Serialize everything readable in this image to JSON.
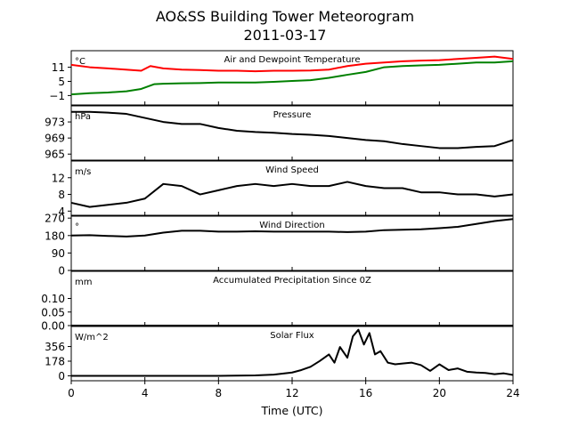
{
  "title_line1": "AO&SS Building Tower Meteorogram",
  "title_line2": "2011-03-17",
  "xlabel": "Time (UTC)",
  "x_ticks": [
    "0",
    "4",
    "8",
    "12",
    "16",
    "20",
    "24"
  ],
  "chart_data": [
    {
      "type": "line",
      "panel_title": "Air and Dewpoint Temperature",
      "unit": "°C",
      "ylim": [
        -5,
        18
      ],
      "yticks": [
        {
          "v": 11,
          "label": "11"
        },
        {
          "v": 5,
          "label": "5"
        },
        {
          "v": -1,
          "label": "−1"
        }
      ],
      "series": [
        {
          "color": "#ff0000",
          "x": [
            0,
            1,
            2,
            3.8,
            4.3,
            5,
            6,
            7,
            8,
            9,
            10,
            11,
            12,
            13,
            14,
            15,
            16,
            17,
            18,
            19,
            20,
            21,
            22,
            23,
            24
          ],
          "y": [
            12,
            11,
            10.5,
            9.5,
            11.5,
            10.5,
            10,
            9.8,
            9.5,
            9.5,
            9.3,
            9.5,
            9.5,
            9.6,
            10,
            11.5,
            12.5,
            13,
            13.5,
            13.8,
            14,
            14.5,
            15,
            15.5,
            14.5
          ]
        },
        {
          "color": "#008000",
          "x": [
            0,
            1,
            2,
            3,
            3.8,
            4.5,
            5,
            6,
            7,
            8,
            9,
            10,
            11,
            12,
            13,
            14,
            15,
            16,
            17,
            18,
            19,
            20,
            21,
            22,
            23,
            24
          ],
          "y": [
            -0.5,
            0,
            0.3,
            0.8,
            1.8,
            3.8,
            4,
            4.2,
            4.3,
            4.5,
            4.5,
            4.5,
            4.8,
            5.2,
            5.5,
            6.5,
            7.8,
            9,
            11,
            11.5,
            11.8,
            12,
            12.5,
            13,
            13,
            13.5
          ]
        }
      ]
    },
    {
      "type": "line",
      "panel_title": "Pressure",
      "unit": "hPa",
      "ylim": [
        963.5,
        977
      ],
      "yticks": [
        {
          "v": 973,
          "label": "973"
        },
        {
          "v": 969,
          "label": "969"
        },
        {
          "v": 965,
          "label": "965"
        }
      ],
      "series": [
        {
          "color": "#000000",
          "x": [
            0,
            1,
            2,
            3,
            4,
            5,
            6,
            7,
            8,
            9,
            10,
            11,
            12,
            13,
            14,
            15,
            16,
            17,
            18,
            19,
            20,
            21,
            22,
            23,
            24
          ],
          "y": [
            975.5,
            975.5,
            975.3,
            975,
            974,
            973,
            972.5,
            972.5,
            971.5,
            970.8,
            970.5,
            970.3,
            970,
            969.8,
            969.5,
            969,
            968.5,
            968.2,
            967.5,
            967,
            966.5,
            966.5,
            966.8,
            967,
            968.5
          ]
        }
      ]
    },
    {
      "type": "line",
      "panel_title": "Wind Speed",
      "unit": "m/s",
      "ylim": [
        3,
        16
      ],
      "yticks": [
        {
          "v": 12,
          "label": "12"
        },
        {
          "v": 8,
          "label": "8"
        },
        {
          "v": 4,
          "label": "4"
        }
      ],
      "series": [
        {
          "color": "#000000",
          "x": [
            0,
            1,
            2,
            3,
            4,
            5,
            6,
            7,
            8,
            9,
            10,
            11,
            12,
            13,
            14,
            15,
            16,
            17,
            18,
            19,
            20,
            21,
            22,
            23,
            24
          ],
          "y": [
            6,
            5,
            5.5,
            6,
            7,
            10.5,
            10,
            8,
            9,
            10,
            10.5,
            10,
            10.5,
            10,
            10,
            11,
            10,
            9.5,
            9.5,
            8.5,
            8.5,
            8,
            8,
            7.5,
            8
          ]
        }
      ]
    },
    {
      "type": "line",
      "panel_title": "Wind Direction",
      "unit": "°",
      "ylim": [
        0,
        280
      ],
      "yticks": [
        {
          "v": 270,
          "label": "270"
        },
        {
          "v": 180,
          "label": "180"
        },
        {
          "v": 90,
          "label": "90"
        },
        {
          "v": 0,
          "label": "0"
        }
      ],
      "series": [
        {
          "color": "#000000",
          "x": [
            0,
            1,
            2,
            3,
            4,
            5,
            6,
            7,
            8,
            9,
            10,
            11,
            12,
            13,
            14,
            15,
            16,
            17,
            18,
            19,
            20,
            21,
            22,
            23,
            24
          ],
          "y": [
            180,
            182,
            178,
            175,
            180,
            195,
            205,
            205,
            200,
            200,
            202,
            200,
            200,
            200,
            200,
            198,
            200,
            208,
            210,
            212,
            218,
            225,
            240,
            255,
            265
          ]
        }
      ]
    },
    {
      "type": "line",
      "panel_title": "Accumulated Precipitation Since 0Z",
      "unit": "mm",
      "ylim": [
        0,
        0.2
      ],
      "yticks": [
        {
          "v": 0.1,
          "label": "0.10"
        },
        {
          "v": 0.05,
          "label": "0.05"
        },
        {
          "v": 0,
          "label": "0.00"
        }
      ],
      "series": [
        {
          "color": "#000000",
          "x": [
            0,
            24
          ],
          "y": [
            0,
            0
          ]
        }
      ]
    },
    {
      "type": "line",
      "panel_title": "Solar Flux",
      "unit": "W/m^2",
      "ylim": [
        -60,
        600
      ],
      "yticks": [
        {
          "v": 356,
          "label": "356"
        },
        {
          "v": 178,
          "label": "178"
        },
        {
          "v": 0,
          "label": "0"
        }
      ],
      "series": [
        {
          "color": "#000000",
          "x": [
            0,
            4,
            8,
            10,
            11,
            12,
            12.5,
            13,
            13.5,
            14,
            14.3,
            14.6,
            15,
            15.3,
            15.6,
            15.9,
            16.2,
            16.5,
            16.8,
            17.2,
            17.6,
            18,
            18.5,
            19,
            19.5,
            20,
            20.5,
            21,
            21.5,
            22,
            22.5,
            23,
            23.5,
            24
          ],
          "y": [
            0,
            0,
            0,
            5,
            15,
            40,
            70,
            110,
            180,
            260,
            160,
            350,
            220,
            480,
            560,
            380,
            520,
            260,
            300,
            160,
            140,
            150,
            160,
            130,
            60,
            140,
            70,
            90,
            50,
            40,
            35,
            20,
            30,
            10
          ]
        }
      ]
    }
  ]
}
